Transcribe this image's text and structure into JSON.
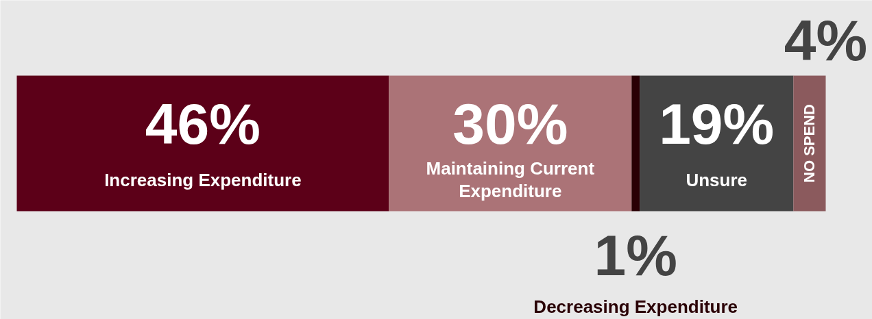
{
  "chart_data": {
    "type": "bar",
    "orientation": "horizontal",
    "stacked": true,
    "categories": [
      null
    ],
    "series": [
      {
        "name": "Increasing Expenditure",
        "color": "#5c0018",
        "values": [
          46
        ],
        "value_labels": [
          "46%"
        ]
      },
      {
        "name": "Maintaining Current Expenditure",
        "color": "#ab7377",
        "values": [
          30
        ],
        "value_labels": [
          "30%"
        ]
      },
      {
        "name": "Decreasing Expenditure",
        "color": "#2a0005",
        "values": [
          1
        ],
        "value_labels": [
          "1%"
        ]
      },
      {
        "name": "Unsure",
        "color": "#444444",
        "values": [
          19
        ],
        "value_labels": [
          "19%"
        ]
      },
      {
        "name": "NO SPEND",
        "color": "#8b5a5d",
        "values": [
          4
        ],
        "value_labels": [
          "4%"
        ]
      }
    ]
  }
}
